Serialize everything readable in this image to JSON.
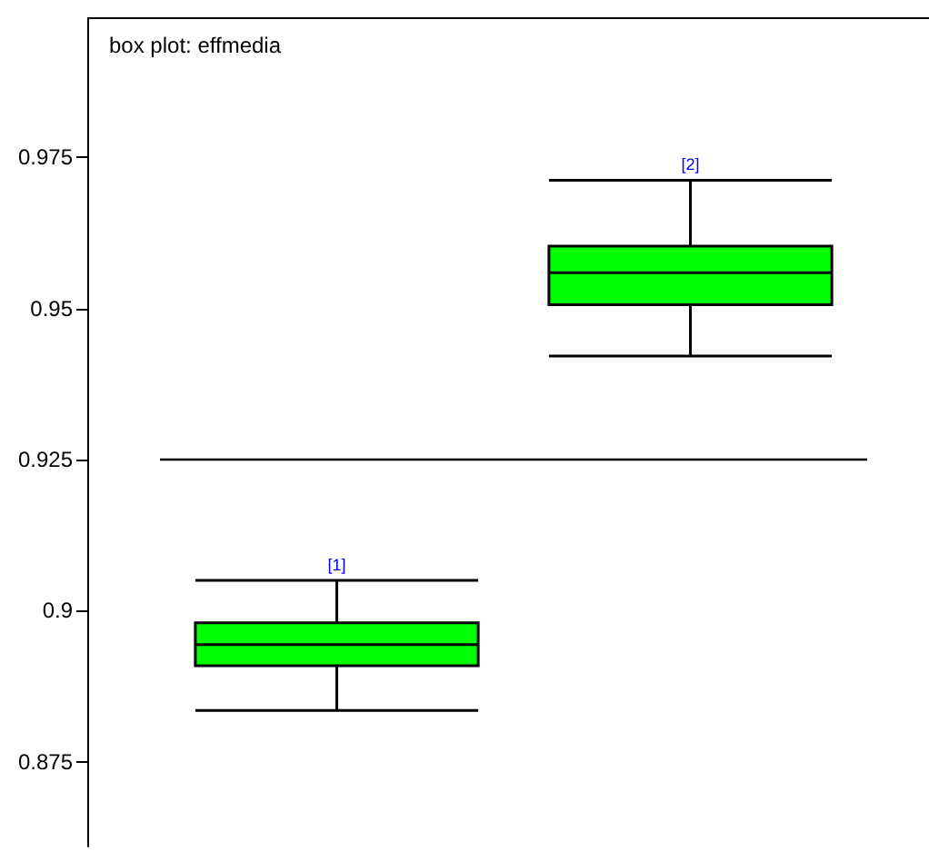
{
  "chart_data": {
    "type": "box",
    "title": "box plot: effmedia",
    "categories": [
      null,
      null
    ],
    "color": "#00ff00",
    "boxes": [
      {
        "low": 0.8835,
        "q1": 0.8909,
        "median": 0.8944,
        "q3": 0.898,
        "high": 0.905
      },
      {
        "low": 0.9421,
        "q1": 0.9506,
        "median": 0.9559,
        "q3": 0.9603,
        "high": 0.9712
      }
    ],
    "ylim": [
      0.861,
      0.998
    ],
    "yticks": [
      0.875,
      0.9,
      0.925,
      0.95,
      0.975
    ],
    "grid": false,
    "legend": false,
    "ref_lines": [
      {
        "axis": "y",
        "value": 0.925,
        "color": "#000000"
      }
    ],
    "annotations": [
      {
        "text": "[1]",
        "y": 0.905
      },
      {
        "text": "[2]",
        "y": 0.9712
      }
    ]
  }
}
